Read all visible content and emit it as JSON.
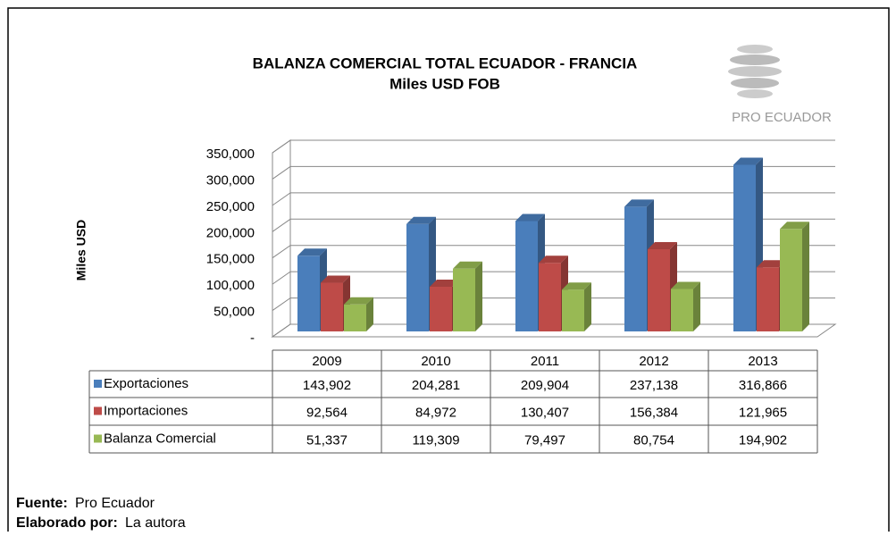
{
  "chart_data": {
    "type": "bar3d",
    "title": "BALANZA COMERCIAL TOTAL ECUADOR - FRANCIA",
    "subtitle": "Miles USD FOB",
    "ylabel": "Miles USD",
    "logo_text": "PRO ECUADOR",
    "categories": [
      "2009",
      "2010",
      "2011",
      "2012",
      "2013"
    ],
    "series": [
      {
        "name": "Exportaciones",
        "color": "#4a7ebb",
        "values": [
          143902,
          204281,
          209904,
          237138,
          316866
        ],
        "value_labels": [
          "143,902",
          "204,281",
          "209,904",
          "237,138",
          "316,866"
        ]
      },
      {
        "name": "Importaciones",
        "color": "#be4b48",
        "values": [
          92564,
          84972,
          130407,
          156384,
          121965
        ],
        "value_labels": [
          "92,564",
          "84,972",
          "130,407",
          "156,384",
          "121,965"
        ]
      },
      {
        "name": "Balanza Comercial",
        "color": "#98b954",
        "values": [
          51337,
          119309,
          79497,
          80754,
          194902
        ],
        "value_labels": [
          "51,337",
          "119,309",
          "79,497",
          "80,754",
          "194,902"
        ]
      }
    ],
    "ylim": [
      0,
      350000
    ],
    "yticks": [
      {
        "value": 0,
        "label": "-"
      },
      {
        "value": 50000,
        "label": "50,000"
      },
      {
        "value": 100000,
        "label": "100,000"
      },
      {
        "value": 150000,
        "label": "150,000"
      },
      {
        "value": 200000,
        "label": "200,000"
      },
      {
        "value": 250000,
        "label": "250,000"
      },
      {
        "value": 300000,
        "label": "300,000"
      },
      {
        "value": 350000,
        "label": "350,000"
      }
    ],
    "grid": true
  },
  "footer": {
    "source_label": "Fuente:",
    "source": "Pro Ecuador",
    "author_label": "Elaborado por:",
    "author": "La autora"
  }
}
